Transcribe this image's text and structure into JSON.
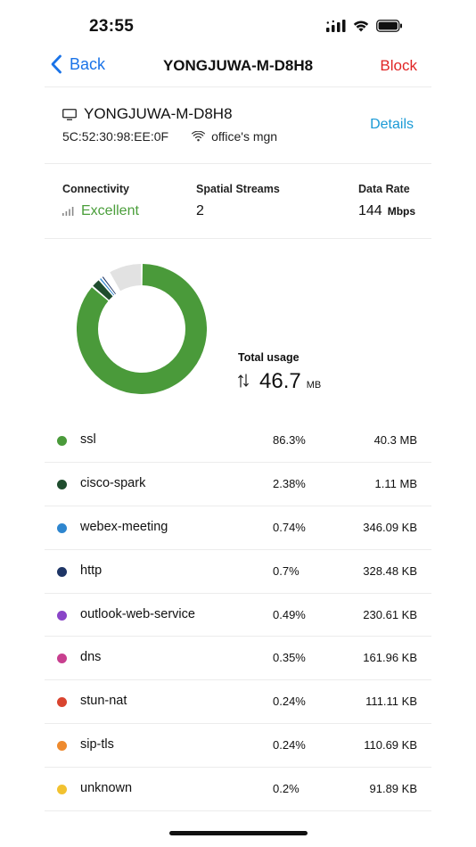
{
  "status_bar": {
    "time": "23:55",
    "icons": [
      "signal-icon",
      "wifi-icon",
      "battery-icon"
    ]
  },
  "nav": {
    "back_label": "Back",
    "title": "YONGJUWA-M-D8H8",
    "block_label": "Block"
  },
  "device": {
    "name": "YONGJUWA-M-D8H8",
    "mac": "5C:52:30:98:EE:0F",
    "ssid": "office's mgn",
    "details_label": "Details",
    "icon": "monitor-icon"
  },
  "stats": {
    "connectivity": {
      "label": "Connectivity",
      "value": "Excellent"
    },
    "spatial_streams": {
      "label": "Spatial Streams",
      "value": "2"
    },
    "data_rate": {
      "label": "Data Rate",
      "value": "144",
      "unit": "Mbps"
    }
  },
  "usage": {
    "label": "Total usage",
    "value": "46.7",
    "unit": "MB"
  },
  "chart_data": {
    "type": "pie",
    "categories": [
      "ssl",
      "cisco-spark",
      "webex-meeting",
      "http",
      "outlook-web-service",
      "dns",
      "stun-nat",
      "sip-tls",
      "unknown"
    ],
    "values": [
      86.3,
      2.38,
      0.74,
      0.7,
      0.49,
      0.35,
      0.24,
      0.24,
      0.2
    ],
    "remainder": 8.36,
    "colors": [
      "#4a9a3a",
      "#1f4d2e",
      "#2e86cf",
      "#1e3566",
      "#8a45c8",
      "#c83f8f",
      "#d9442f",
      "#ee8a2e",
      "#f2c230"
    ],
    "remainder_color": "#e2e2e2"
  },
  "apps": [
    {
      "name": "ssl",
      "pct": "86.3%",
      "size": "40.3 MB",
      "color": "#4a9a3a"
    },
    {
      "name": "cisco-spark",
      "pct": "2.38%",
      "size": "1.11 MB",
      "color": "#1f4d2e"
    },
    {
      "name": "webex-meeting",
      "pct": "0.74%",
      "size": "346.09 KB",
      "color": "#2e86cf"
    },
    {
      "name": "http",
      "pct": "0.7%",
      "size": "328.48 KB",
      "color": "#1e3566"
    },
    {
      "name": "outlook-web-service",
      "pct": "0.49%",
      "size": "230.61 KB",
      "color": "#8a45c8"
    },
    {
      "name": "dns",
      "pct": "0.35%",
      "size": "161.96 KB",
      "color": "#c83f8f"
    },
    {
      "name": "stun-nat",
      "pct": "0.24%",
      "size": "111.11 KB",
      "color": "#d9442f"
    },
    {
      "name": "sip-tls",
      "pct": "0.24%",
      "size": "110.69 KB",
      "color": "#ee8a2e"
    },
    {
      "name": "unknown",
      "pct": "0.2%",
      "size": "91.89 KB",
      "color": "#f2c230"
    }
  ],
  "colors": {
    "accent_blue": "#1a73e8",
    "details_blue": "#1a9ad6",
    "block_red": "#e02424",
    "excellent_green": "#4a9e3a"
  }
}
